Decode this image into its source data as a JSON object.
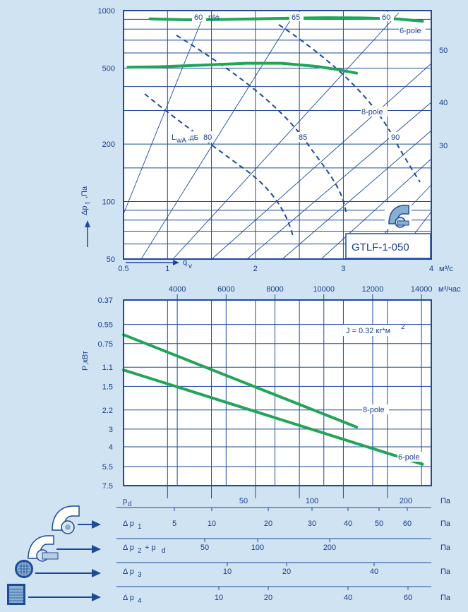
{
  "chart_data": [
    {
      "type": "line",
      "chart_title": "GTLF-1-050",
      "x_axis": {
        "label": "q",
        "label_sub": "v",
        "unit": "м³/с",
        "scale": "linear",
        "range": [
          0.5,
          4
        ],
        "ticks": [
          0.5,
          1,
          2,
          3,
          4
        ],
        "tick_labels": [
          "0.5",
          "1",
          "2",
          "3",
          "4"
        ]
      },
      "x2_axis": {
        "unit": "м³/час",
        "ticks": [
          4000,
          6000,
          8000,
          10000,
          12000,
          14000
        ],
        "tick_labels": [
          "4000",
          "6000",
          "8000",
          "10000",
          "12000",
          "14000"
        ]
      },
      "y_axis": {
        "label": "Δp",
        "label_sub": "t",
        "unit": ",Па",
        "scale": "log",
        "range": [
          50,
          1000
        ],
        "ticks": [
          50,
          100,
          200,
          500,
          1000
        ],
        "tick_labels": [
          "50",
          "100",
          "200",
          "500",
          "1000"
        ]
      },
      "series": [
        {
          "name": "6-pole",
          "x": [
            0.8,
            1.2,
            1.6,
            2.0,
            2.4,
            2.8,
            3.2,
            3.6,
            3.9
          ],
          "y": [
            905,
            895,
            898,
            905,
            912,
            918,
            915,
            905,
            880
          ]
        },
        {
          "name": "8-pole",
          "x": [
            0.55,
            0.9,
            1.4,
            1.9,
            2.3,
            2.7,
            2.95,
            3.15
          ],
          "y": [
            505,
            508,
            518,
            530,
            530,
            510,
            490,
            470
          ]
        }
      ],
      "efficiency_label": "η%",
      "efficiency_ray_labels": [
        "60",
        "65",
        "60"
      ],
      "sound_label": "L",
      "sound_label_sub": "wA",
      "sound_unit": ",дБ",
      "sound_isolines": [
        "80",
        "85",
        "90"
      ],
      "right_scale_labels": [
        "50",
        "40",
        "30"
      ]
    },
    {
      "type": "line",
      "x_axis": {
        "scale": "linear",
        "range": [
          0.5,
          4
        ]
      },
      "y_axis": {
        "label": "P",
        "unit": ",кВт",
        "scale": "log-reversed",
        "ticks": [
          0.37,
          0.55,
          0.75,
          1.1,
          1.5,
          2.2,
          3,
          4,
          5.5,
          7.5
        ],
        "tick_labels": [
          "0.37",
          "0.55",
          "0.75",
          "1.1",
          "1.5",
          "2.2",
          "3",
          "4",
          "5.5",
          "7.5"
        ]
      },
      "annotation": "J = 0.32 кг*м",
      "annotation_sup": "2",
      "series": [
        {
          "name": "8-pole",
          "x": [
            0.5,
            3.15
          ],
          "y": [
            0.65,
            2.9
          ]
        },
        {
          "name": "6-pole",
          "x": [
            0.5,
            3.9
          ],
          "y": [
            1.15,
            5.3
          ]
        }
      ]
    }
  ],
  "pressure_scales": {
    "unit": "Па",
    "rows": [
      {
        "label": "p",
        "label_sub": "d",
        "label_tail": "",
        "ticks": [
          "50",
          "100",
          "200"
        ]
      },
      {
        "label": "Δ p",
        "label_sub": "1",
        "label_tail": "",
        "ticks": [
          "5",
          "10",
          "20",
          "30",
          "40",
          "50",
          "60"
        ]
      },
      {
        "label": "Δ p",
        "label_sub": "2",
        "label_tail": "+ p",
        "label_tail_sub": "d",
        "ticks": [
          "50",
          "100",
          "200"
        ]
      },
      {
        "label": "Δ p",
        "label_sub": "3",
        "label_tail": "",
        "ticks": [
          "10",
          "20",
          "40"
        ]
      },
      {
        "label": "Δ p",
        "label_sub": "4",
        "label_tail": "",
        "ticks": [
          "10",
          "20",
          "40",
          "60"
        ]
      }
    ]
  },
  "colors": {
    "axis": "#1e4a9a",
    "curve": "#22a45a",
    "background": "#cfe3f3",
    "panel": "#ffffff",
    "arrow": "#1e4a9a"
  },
  "icons": [
    "fan-icon",
    "fan-with-duct-icon",
    "filter-icon",
    "grille-icon"
  ]
}
